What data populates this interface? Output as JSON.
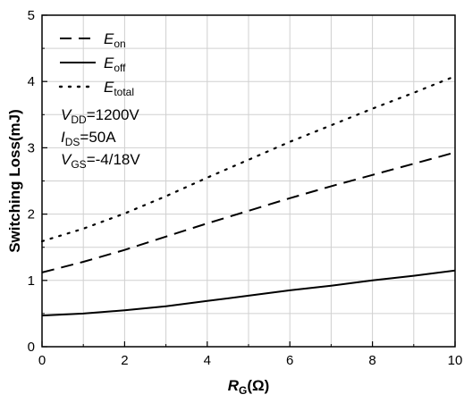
{
  "chart_data": {
    "type": "line",
    "xlabel_main": "R",
    "xlabel_sub": "G",
    "xlabel_unit": "(Ω)",
    "ylabel": "Switching Loss(mJ)",
    "xlim": [
      0,
      10
    ],
    "ylim": [
      0,
      5
    ],
    "x_ticks": [
      "0",
      "2",
      "4",
      "6",
      "8",
      "10"
    ],
    "y_ticks": [
      "0",
      "1",
      "2",
      "3",
      "4",
      "5"
    ],
    "grid": true,
    "legend_position": "top-left",
    "x": [
      0,
      1,
      2,
      3,
      4,
      5,
      6,
      7,
      8,
      9,
      10
    ],
    "series": [
      {
        "name_main": "E",
        "name_sub": "on",
        "style": "dashed",
        "color": "#000000",
        "values": [
          1.12,
          1.28,
          1.46,
          1.66,
          1.86,
          2.05,
          2.24,
          2.42,
          2.59,
          2.76,
          2.93
        ]
      },
      {
        "name_main": "E",
        "name_sub": "off",
        "style": "solid",
        "color": "#000000",
        "values": [
          0.47,
          0.5,
          0.55,
          0.61,
          0.69,
          0.77,
          0.85,
          0.92,
          1.0,
          1.07,
          1.15
        ]
      },
      {
        "name_main": "E",
        "name_sub": "total",
        "style": "dotted",
        "color": "#000000",
        "values": [
          1.59,
          1.78,
          2.01,
          2.27,
          2.55,
          2.82,
          3.09,
          3.34,
          3.59,
          3.83,
          4.08
        ]
      }
    ],
    "conditions": [
      {
        "main": "V",
        "sub": "DD",
        "rest": "=1200V"
      },
      {
        "main": "I",
        "sub": "DS",
        "rest": "=50A"
      },
      {
        "main": "V",
        "sub": "GS",
        "rest": "=-4/18V"
      }
    ]
  }
}
